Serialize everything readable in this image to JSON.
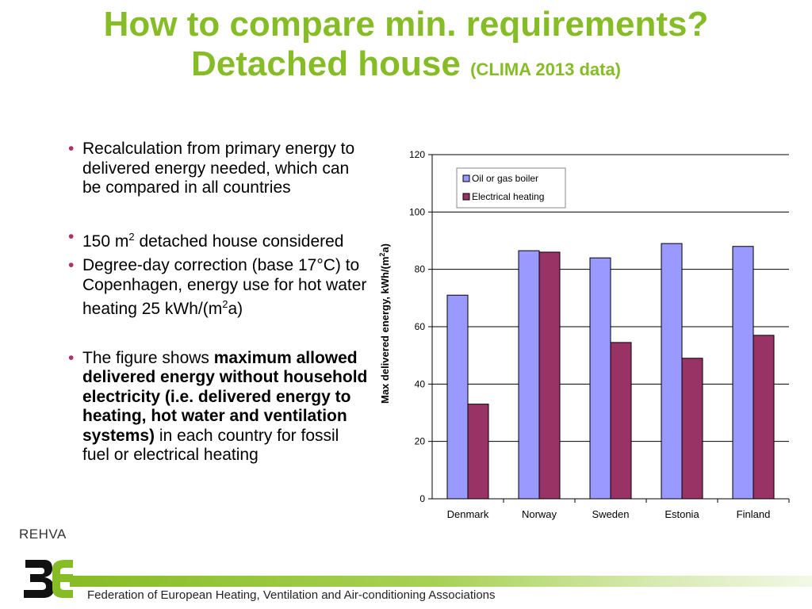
{
  "slide": {
    "title_line1": "How to compare min. requirements?",
    "title_line2": "Detached house",
    "title_small": "(CLIMA 2013 data)"
  },
  "bullets": {
    "b1": "Recalculation from primary energy to delivered energy needed, which can be compared in all countries",
    "b2_pre": "150 m",
    "b2_sup": "2",
    "b2_post": " detached house considered",
    "b3_pre": "Degree-day correction (base 17°C) to Copenhagen, energy use for hot water heating 25 kWh/(m",
    "b3_sup": "2",
    "b3_post": "a)",
    "b4_pre": "The figure shows ",
    "b4_bold": "maximum allowed delivered energy without household electricity (i.e. delivered energy to heating, hot water and ventilation systems)",
    "b4_post": " in each country for fossil fuel or electrical heating"
  },
  "footer": {
    "text": "Federation of European Heating, Ventilation and Air-conditioning Associations",
    "logo_text": "REHVA"
  },
  "colors": {
    "title": "#86bc25",
    "bullet": "#b0306a",
    "series1": "#9999ff",
    "series2": "#993366"
  },
  "chart_data": {
    "type": "bar",
    "categories": [
      "Denmark",
      "Norway",
      "Sweden",
      "Estonia",
      "Finland"
    ],
    "series": [
      {
        "name": "Oil or gas boiler",
        "values": [
          71,
          86.5,
          84,
          89,
          88
        ]
      },
      {
        "name": "Electrical heating",
        "values": [
          33,
          86,
          54.5,
          49,
          57
        ]
      }
    ],
    "ylabel_pre": "Max delivered energy, kWh/(m",
    "ylabel_sup": "2",
    "ylabel_post": "a)",
    "ylim": [
      0,
      120
    ],
    "yticks": [
      "0",
      "20",
      "40",
      "60",
      "80",
      "100",
      "120"
    ],
    "grid": true,
    "legend": "top-left"
  }
}
